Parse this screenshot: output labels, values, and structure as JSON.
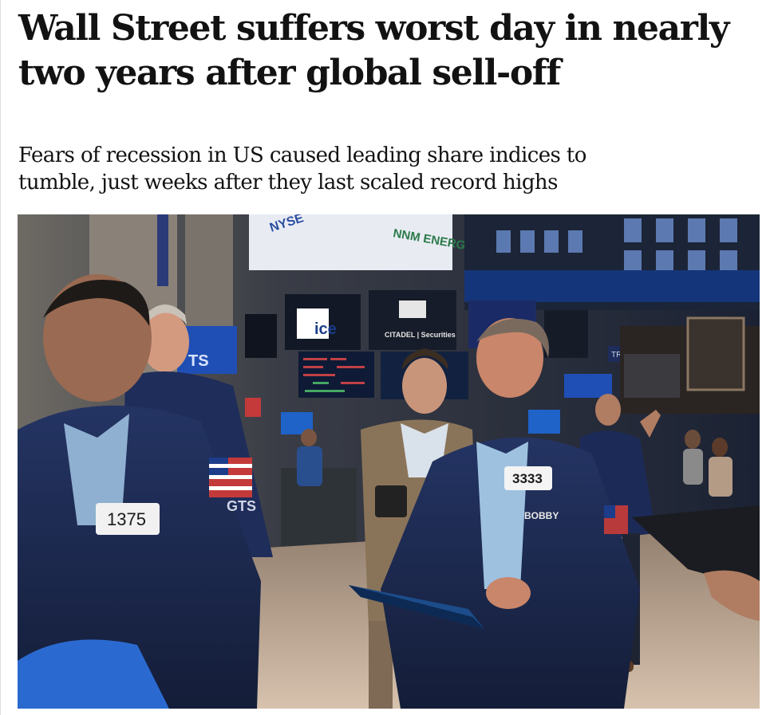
{
  "article": {
    "headline_line1": "Wall Street suffers worst day in nearly",
    "headline_line2": "two years after global sell-off",
    "standfirst_line1": "Fears of recession in US caused leading share indices to",
    "standfirst_line2": "tumble, just weeks after they last scaled record highs"
  },
  "photo": {
    "subject": "Traders on the floor of the New York Stock Exchange",
    "signs": {
      "nyse": "NYSE",
      "energy": "NNM ENERGY",
      "ice": "ice",
      "citadel": "CITADEL | Securities",
      "trade": "TRADEMA"
    },
    "badges": {
      "left_trader": "1375",
      "center_trader": "3333",
      "name_tag": "BOBBY",
      "jacket_logo": "GTS"
    },
    "colors": {
      "jacket_navy": "#1d2a4d",
      "floor": "#c9b29a",
      "screen_blue": "#1f4fb5"
    }
  }
}
